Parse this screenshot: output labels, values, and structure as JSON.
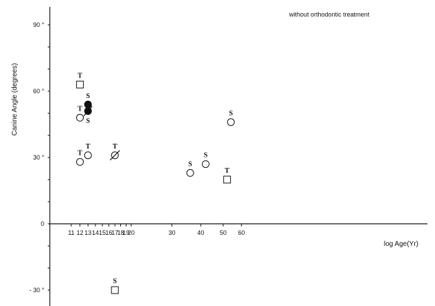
{
  "chart_data": {
    "type": "scatter",
    "title": "",
    "annotation": "without  orthodontic treatment",
    "xlabel": "log Age(Yr)",
    "ylabel": "Canine Angle (degrees)",
    "x_scale": "log",
    "xlim": [
      10,
      66
    ],
    "ylim": [
      -36,
      100
    ],
    "x_ticks": [
      11,
      12,
      13,
      14,
      15,
      16,
      17,
      18,
      19,
      20,
      30,
      40,
      50,
      60
    ],
    "y_ticks": [
      {
        "value": 90,
        "label": "90 °"
      },
      {
        "value": 60,
        "label": "60 °"
      },
      {
        "value": 30,
        "label": "30 °"
      },
      {
        "value": 0,
        "label": "0"
      },
      {
        "value": -30,
        "label": "- 30 °"
      }
    ],
    "grid": false,
    "points": [
      {
        "x": 12,
        "y": 63,
        "marker": "square",
        "label": "T"
      },
      {
        "x": 12,
        "y": 48,
        "marker": "circle",
        "label": "T"
      },
      {
        "x": 12,
        "y": 28,
        "marker": "circle",
        "label": "T"
      },
      {
        "x": 13,
        "y": 31,
        "marker": "circle",
        "label": "T"
      },
      {
        "x": 13,
        "y": 54,
        "marker": "filled-circle",
        "label": "S"
      },
      {
        "x": 13,
        "y": 51,
        "marker": "slashed-filled-circle",
        "label": "S"
      },
      {
        "x": 17,
        "y": 31,
        "marker": "slashed-circle",
        "label": "T"
      },
      {
        "x": 17,
        "y": -30,
        "marker": "square",
        "label": "S"
      },
      {
        "x": 36,
        "y": 23,
        "marker": "circle",
        "label": "S"
      },
      {
        "x": 42,
        "y": 27,
        "marker": "circle",
        "label": "S"
      },
      {
        "x": 52,
        "y": 20,
        "marker": "square",
        "label": "T"
      },
      {
        "x": 54,
        "y": 46,
        "marker": "circle",
        "label": "S"
      }
    ]
  }
}
